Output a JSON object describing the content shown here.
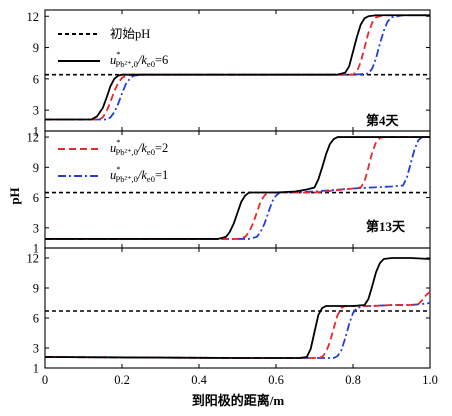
{
  "chart_data": [
    {
      "type": "line",
      "panel_label": "第4天",
      "ylabel": "",
      "xlim": [
        0,
        1.0
      ],
      "ylim": [
        1,
        12.6
      ],
      "yticks": [
        1,
        3,
        6,
        9,
        12
      ],
      "initial_pH": 6.4,
      "series": [
        {
          "key": "r6",
          "color": "#000000",
          "dash": "solid",
          "x": [
            0,
            0.12,
            0.135,
            0.15,
            0.16,
            0.17,
            0.18,
            0.19,
            0.2,
            0.22,
            0.3,
            0.4,
            0.5,
            0.6,
            0.7,
            0.76,
            0.78,
            0.79,
            0.8,
            0.81,
            0.82,
            0.83,
            0.84,
            0.86,
            0.9,
            0.95,
            1.0
          ],
          "y": [
            2.1,
            2.1,
            2.4,
            3.2,
            4.2,
            5.3,
            6.0,
            6.3,
            6.4,
            6.4,
            6.4,
            6.4,
            6.4,
            6.4,
            6.4,
            6.4,
            6.6,
            7.2,
            8.6,
            10.0,
            11.2,
            11.8,
            12.0,
            12.1,
            12.1,
            12.1,
            12.1
          ]
        },
        {
          "key": "r2",
          "color": "#e8282b",
          "dash": "dashed",
          "x": [
            0,
            0.14,
            0.15,
            0.16,
            0.17,
            0.18,
            0.19,
            0.2,
            0.21,
            0.23,
            0.3,
            0.4,
            0.5,
            0.6,
            0.7,
            0.8,
            0.81,
            0.82,
            0.83,
            0.84,
            0.85,
            0.86,
            0.88,
            0.92,
            1.0
          ],
          "y": [
            2.1,
            2.1,
            2.3,
            2.9,
            3.8,
            4.8,
            5.6,
            6.1,
            6.3,
            6.4,
            6.4,
            6.4,
            6.4,
            6.4,
            6.4,
            6.4,
            6.7,
            7.6,
            9.0,
            10.4,
            11.4,
            11.9,
            12.1,
            12.1,
            12.1
          ]
        },
        {
          "key": "r1",
          "color": "#1f3fe0",
          "dash": "dashdot",
          "x": [
            0,
            0.16,
            0.17,
            0.18,
            0.19,
            0.2,
            0.21,
            0.22,
            0.23,
            0.25,
            0.3,
            0.4,
            0.5,
            0.6,
            0.7,
            0.8,
            0.84,
            0.85,
            0.86,
            0.87,
            0.88,
            0.89,
            0.9,
            0.93,
            0.96,
            1.0
          ],
          "y": [
            2.1,
            2.1,
            2.3,
            2.8,
            3.6,
            4.6,
            5.5,
            6.0,
            6.3,
            6.4,
            6.4,
            6.4,
            6.4,
            6.4,
            6.4,
            6.4,
            6.5,
            7.0,
            8.0,
            9.4,
            10.6,
            11.5,
            11.9,
            12.1,
            12.1,
            12.1
          ]
        }
      ]
    },
    {
      "type": "line",
      "panel_label": "第13天",
      "ylabel": "pH",
      "xlim": [
        0,
        1.0
      ],
      "ylim": [
        1,
        12.6
      ],
      "yticks": [
        1,
        3,
        6,
        9,
        12
      ],
      "initial_pH": 6.5,
      "series": [
        {
          "key": "r6",
          "color": "#000000",
          "dash": "solid",
          "x": [
            0,
            0.45,
            0.47,
            0.48,
            0.49,
            0.5,
            0.51,
            0.52,
            0.53,
            0.55,
            0.6,
            0.65,
            0.68,
            0.7,
            0.71,
            0.72,
            0.73,
            0.74,
            0.75,
            0.76,
            0.78,
            0.85,
            0.9,
            0.95,
            1.0
          ],
          "y": [
            1.9,
            1.9,
            2.1,
            2.6,
            3.4,
            4.5,
            5.6,
            6.2,
            6.5,
            6.5,
            6.5,
            6.6,
            6.8,
            7.0,
            7.8,
            9.0,
            10.3,
            11.3,
            11.8,
            12.0,
            12.0,
            12.0,
            12.0,
            12.0,
            12.0
          ]
        },
        {
          "key": "r2",
          "color": "#e8282b",
          "dash": "dashed",
          "x": [
            0,
            0.5,
            0.52,
            0.53,
            0.54,
            0.55,
            0.56,
            0.57,
            0.58,
            0.6,
            0.7,
            0.75,
            0.8,
            0.82,
            0.83,
            0.84,
            0.85,
            0.86,
            0.87,
            0.88,
            0.9,
            0.95,
            1.0
          ],
          "y": [
            1.9,
            1.9,
            2.1,
            2.6,
            3.4,
            4.5,
            5.6,
            6.2,
            6.5,
            6.5,
            6.5,
            6.7,
            6.9,
            7.0,
            7.6,
            9.0,
            10.5,
            11.5,
            11.9,
            12.0,
            12.0,
            12.0,
            12.0
          ]
        },
        {
          "key": "r1",
          "color": "#1f3fe0",
          "dash": "dashdot",
          "x": [
            0,
            0.53,
            0.55,
            0.56,
            0.57,
            0.58,
            0.59,
            0.6,
            0.61,
            0.63,
            0.7,
            0.8,
            0.9,
            0.93,
            0.94,
            0.95,
            0.96,
            0.97,
            0.98,
            1.0
          ],
          "y": [
            1.9,
            1.9,
            2.1,
            2.6,
            3.4,
            4.5,
            5.6,
            6.2,
            6.5,
            6.5,
            6.6,
            6.9,
            7.1,
            7.2,
            8.0,
            9.4,
            10.8,
            11.7,
            12.0,
            12.0
          ]
        }
      ]
    },
    {
      "type": "line",
      "panel_label": "",
      "ylabel": "",
      "xlabel": "到阳极的距离/m",
      "xlim": [
        0,
        1.0
      ],
      "xticks": [
        0,
        0.2,
        0.4,
        0.6,
        0.8,
        1.0
      ],
      "ylim": [
        1,
        13
      ],
      "yticks": [
        1,
        3,
        6,
        9,
        12
      ],
      "initial_pH": 6.7,
      "series": [
        {
          "key": "r6",
          "color": "#000000",
          "dash": "solid",
          "x": [
            0,
            0.5,
            0.6,
            0.66,
            0.68,
            0.69,
            0.7,
            0.71,
            0.72,
            0.73,
            0.75,
            0.8,
            0.83,
            0.84,
            0.85,
            0.86,
            0.87,
            0.88,
            0.9,
            0.95,
            1.0
          ],
          "y": [
            2.1,
            2.0,
            2.0,
            2.0,
            2.1,
            2.9,
            4.6,
            6.3,
            7.0,
            7.2,
            7.2,
            7.2,
            7.3,
            7.9,
            9.2,
            10.6,
            11.5,
            11.9,
            12.0,
            12.0,
            11.9
          ]
        },
        {
          "key": "r2",
          "color": "#e8282b",
          "dash": "dashed",
          "x": [
            0,
            0.5,
            0.6,
            0.7,
            0.72,
            0.73,
            0.74,
            0.75,
            0.76,
            0.77,
            0.78,
            0.8,
            0.85,
            0.9,
            0.95,
            0.97,
            0.98,
            0.99,
            1.0
          ],
          "y": [
            2.1,
            2.0,
            2.0,
            2.0,
            2.1,
            2.6,
            3.6,
            5.0,
            6.3,
            7.0,
            7.2,
            7.2,
            7.2,
            7.3,
            7.3,
            7.4,
            7.8,
            8.3,
            8.6
          ]
        },
        {
          "key": "r1",
          "color": "#1f3fe0",
          "dash": "dashdot",
          "x": [
            0,
            0.5,
            0.6,
            0.7,
            0.75,
            0.76,
            0.77,
            0.78,
            0.79,
            0.8,
            0.81,
            0.83,
            0.85,
            0.9,
            0.95,
            0.98,
            1.0
          ],
          "y": [
            2.1,
            2.0,
            2.0,
            2.0,
            2.0,
            2.2,
            2.8,
            4.0,
            5.4,
            6.5,
            7.0,
            7.2,
            7.2,
            7.3,
            7.3,
            7.4,
            7.5
          ]
        }
      ]
    }
  ],
  "legend": {
    "initial": {
      "label": "初始pH",
      "color": "#000000"
    },
    "r6": {
      "u": "u",
      "star": "*",
      "sub": "Pb²⁺,0",
      "k": "/k",
      "ksub": "e0",
      "val": "=6"
    },
    "r2": {
      "u": "u",
      "star": "*",
      "sub": "Pb²⁺,0",
      "k": "/k",
      "ksub": "e0",
      "val": "=2"
    },
    "r1": {
      "u": "u",
      "star": "*",
      "sub": "Pb²⁺,0",
      "k": "/k",
      "ksub": "e0",
      "val": "=1"
    }
  }
}
